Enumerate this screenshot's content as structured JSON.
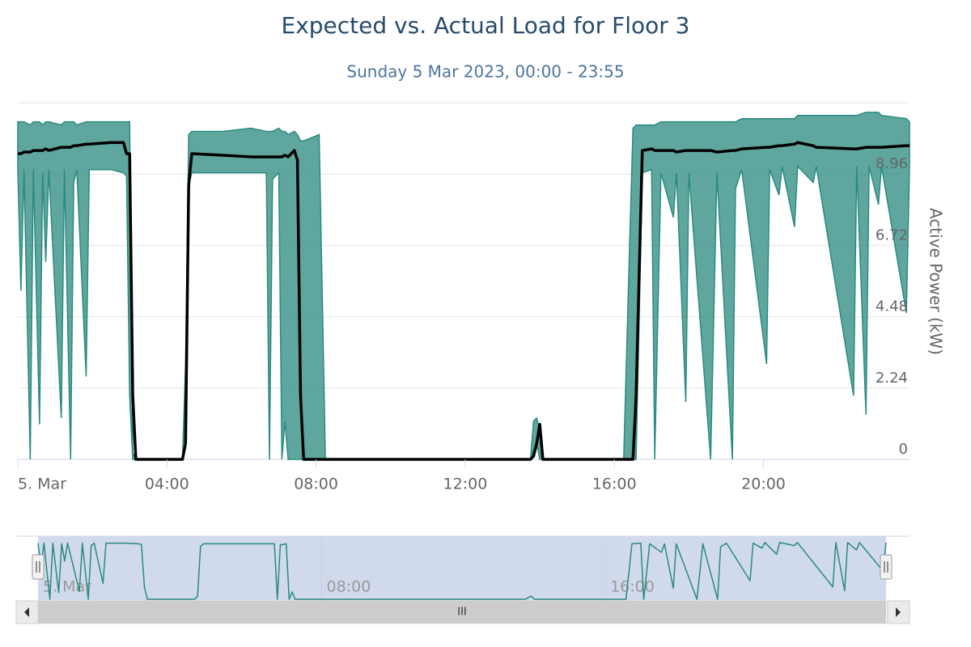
{
  "chart_data": {
    "type": "arearange-line",
    "title": "Expected vs. Actual Load for Floor 3",
    "subtitle": "Sunday 5 Mar 2023, 00:00 - 23:55",
    "y_axis_label": "Active Power (kW)",
    "x": [
      "00:00",
      "00:05",
      "00:10",
      "00:20",
      "00:25",
      "00:35",
      "00:40",
      "00:45",
      "00:50",
      "01:10",
      "01:15",
      "01:25",
      "01:30",
      "01:35",
      "01:50",
      "01:55",
      "02:30",
      "02:50",
      "02:55",
      "03:00",
      "03:05",
      "03:10",
      "04:25",
      "04:30",
      "04:35",
      "04:40",
      "05:30",
      "06:15",
      "06:40",
      "06:45",
      "06:50",
      "07:00",
      "07:05",
      "07:10",
      "07:15",
      "07:25",
      "07:30",
      "07:35",
      "07:40",
      "08:05",
      "08:15",
      "13:45",
      "13:50",
      "13:55",
      "14:00",
      "14:05",
      "16:15",
      "16:25",
      "16:30",
      "16:35",
      "16:45",
      "17:00",
      "17:05",
      "17:15",
      "17:35",
      "17:40",
      "17:55",
      "18:00",
      "18:35",
      "18:45",
      "19:10",
      "19:15",
      "19:25",
      "20:05",
      "20:10",
      "20:25",
      "20:30",
      "20:50",
      "20:55",
      "21:20",
      "21:25",
      "22:25",
      "22:30",
      "22:45",
      "22:50",
      "23:05",
      "23:10",
      "23:50",
      "23:55"
    ],
    "series": [
      {
        "type": "arearange",
        "color": "#2a8a7e",
        "low": [
          9.1,
          5.3,
          9.1,
          0,
          9.1,
          1.1,
          9.0,
          6.2,
          9.1,
          1.3,
          9.1,
          0,
          8.7,
          9.1,
          2.6,
          9.1,
          9.1,
          9.0,
          8.9,
          2.0,
          0,
          0,
          0,
          0.5,
          8.6,
          9.0,
          9.0,
          9.0,
          9.0,
          0,
          8.8,
          9.0,
          0,
          1.2,
          0,
          0,
          0,
          0,
          0,
          0,
          0,
          0,
          0.3,
          0.5,
          0,
          0,
          0,
          0,
          0,
          0,
          9.0,
          9.1,
          0,
          9.0,
          7.6,
          9.0,
          1.8,
          9.0,
          0,
          9.0,
          0,
          8.5,
          9.1,
          3.0,
          9.1,
          8.3,
          9.2,
          7.3,
          9.2,
          8.7,
          9.2,
          2.0,
          9.2,
          1.4,
          9.2,
          8.0,
          9.2,
          4.6,
          9.2
        ],
        "high": [
          10.6,
          10.6,
          10.6,
          10.5,
          10.6,
          10.6,
          10.5,
          10.6,
          10.6,
          10.5,
          10.6,
          10.6,
          10.6,
          10.5,
          10.6,
          10.6,
          10.6,
          10.6,
          10.6,
          10.6,
          0.2,
          0,
          0,
          3.0,
          10.2,
          10.3,
          10.3,
          10.4,
          10.3,
          10.3,
          10.3,
          10.4,
          10.3,
          10.3,
          10.2,
          10.3,
          10.2,
          10.0,
          10.0,
          10.2,
          0,
          0,
          1.2,
          1.3,
          0.9,
          0,
          0,
          7.0,
          10.4,
          10.5,
          10.5,
          10.5,
          10.5,
          10.6,
          10.6,
          10.6,
          10.6,
          10.6,
          10.6,
          10.6,
          10.6,
          10.6,
          10.7,
          10.7,
          10.7,
          10.7,
          10.7,
          10.7,
          10.8,
          10.8,
          10.8,
          10.8,
          10.8,
          10.9,
          10.9,
          10.9,
          10.8,
          10.7,
          10.6
        ]
      },
      {
        "type": "line",
        "color": "#000000",
        "values": [
          9.6,
          9.6,
          9.65,
          9.65,
          9.7,
          9.7,
          9.7,
          9.75,
          9.7,
          9.8,
          9.8,
          9.8,
          9.85,
          9.85,
          9.9,
          9.9,
          9.95,
          9.95,
          9.6,
          9.6,
          2.0,
          0,
          0,
          0.5,
          8.6,
          9.6,
          9.55,
          9.5,
          9.5,
          9.5,
          9.5,
          9.5,
          9.5,
          9.55,
          9.5,
          9.7,
          9.4,
          2.0,
          0,
          0,
          0,
          0,
          0.1,
          0.5,
          1.1,
          0,
          0,
          0,
          0,
          2.0,
          9.7,
          9.75,
          9.7,
          9.7,
          9.7,
          9.65,
          9.7,
          9.7,
          9.7,
          9.65,
          9.7,
          9.7,
          9.75,
          9.8,
          9.8,
          9.85,
          9.85,
          9.9,
          9.95,
          9.85,
          9.8,
          9.75,
          9.75,
          9.8,
          9.8,
          9.8,
          9.8,
          9.85,
          9.85
        ]
      }
    ],
    "xlim": [
      "00:00",
      "23:55"
    ],
    "xticks": [
      {
        "value": "00:00",
        "label": "5. Mar"
      },
      "04:00",
      "08:00",
      "12:00",
      "16:00",
      "20:00"
    ],
    "ylim": [
      0,
      11.2
    ],
    "yticks": [
      0,
      2.24,
      4.48,
      6.72,
      8.96,
      11.2
    ],
    "ytick_labels_shown": [
      true,
      true,
      true,
      true,
      true,
      false
    ],
    "grid": true,
    "navigator": {
      "xticks": [
        {
          "value": "00:00",
          "label": "5. Mar"
        },
        "08:00",
        "16:00"
      ]
    },
    "scrollbar_grip": "III"
  }
}
